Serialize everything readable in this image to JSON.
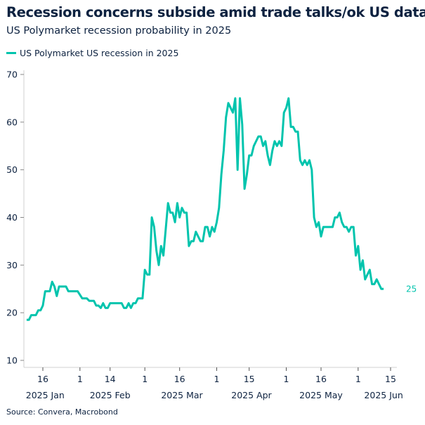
{
  "title": "Recession concerns subside amid trade talks/ok US data",
  "subtitle": "US Polymarket recession probability in 2025",
  "source": "Source: Convera, Macrobond",
  "colors": {
    "line": "#00c4ad",
    "text": "#0d2240",
    "axis": "#d0d0d0"
  },
  "chart_data": {
    "type": "line",
    "title": "Recession concerns subside amid trade talks/ok US data",
    "subtitle": "US Polymarket recession probability in 2025",
    "legend_position": "top-left",
    "grid": false,
    "ylim": [
      10,
      70
    ],
    "yticks": [
      10,
      20,
      30,
      40,
      50,
      60,
      70
    ],
    "xlim": [
      "2025-01-05",
      "2025-06-18"
    ],
    "xticks": [
      {
        "date": "2025-01-16",
        "label": "16"
      },
      {
        "date": "2025-02-01",
        "label": "1"
      },
      {
        "date": "2025-02-14",
        "label": "14"
      },
      {
        "date": "2025-03-01",
        "label": "1"
      },
      {
        "date": "2025-03-16",
        "label": "16"
      },
      {
        "date": "2025-04-01",
        "label": "1"
      },
      {
        "date": "2025-04-15",
        "label": "15"
      },
      {
        "date": "2025-05-01",
        "label": "1"
      },
      {
        "date": "2025-05-16",
        "label": "16"
      },
      {
        "date": "2025-06-01",
        "label": "1"
      },
      {
        "date": "2025-06-15",
        "label": "15"
      }
    ],
    "month_labels": [
      {
        "date": "2025-01-17",
        "label": "2025 Jan"
      },
      {
        "date": "2025-02-14",
        "label": "2025 Feb"
      },
      {
        "date": "2025-03-17",
        "label": "2025 Mar"
      },
      {
        "date": "2025-04-16",
        "label": "2025 Apr"
      },
      {
        "date": "2025-05-16",
        "label": "2025 May"
      },
      {
        "date": "2025-06-12",
        "label": "2025 Jun"
      }
    ],
    "last_value_label": "25",
    "series": [
      {
        "name": "US Polymarket US recession in 2025",
        "points": [
          [
            "2025-01-09",
            18.5
          ],
          [
            "2025-01-10",
            18.5
          ],
          [
            "2025-01-11",
            19.5
          ],
          [
            "2025-01-13",
            19.5
          ],
          [
            "2025-01-14",
            20.5
          ],
          [
            "2025-01-15",
            20.5
          ],
          [
            "2025-01-16",
            21.5
          ],
          [
            "2025-01-17",
            24.5
          ],
          [
            "2025-01-19",
            24.5
          ],
          [
            "2025-01-20",
            26.5
          ],
          [
            "2025-01-21",
            25.5
          ],
          [
            "2025-01-22",
            23.5
          ],
          [
            "2025-01-23",
            25.5
          ],
          [
            "2025-01-26",
            25.5
          ],
          [
            "2025-01-27",
            24.5
          ],
          [
            "2025-01-31",
            24.5
          ],
          [
            "2025-02-02",
            23
          ],
          [
            "2025-02-04",
            23
          ],
          [
            "2025-02-05",
            22.5
          ],
          [
            "2025-02-07",
            22.5
          ],
          [
            "2025-02-08",
            21.5
          ],
          [
            "2025-02-09",
            21.5
          ],
          [
            "2025-02-10",
            21
          ],
          [
            "2025-02-11",
            22
          ],
          [
            "2025-02-12",
            21
          ],
          [
            "2025-02-13",
            21
          ],
          [
            "2025-02-14",
            22
          ],
          [
            "2025-02-19",
            22
          ],
          [
            "2025-02-20",
            21
          ],
          [
            "2025-02-21",
            21
          ],
          [
            "2025-02-22",
            22
          ],
          [
            "2025-02-23",
            21
          ],
          [
            "2025-02-24",
            22
          ],
          [
            "2025-02-25",
            22
          ],
          [
            "2025-02-26",
            23
          ],
          [
            "2025-02-28",
            23
          ],
          [
            "2025-03-01",
            29
          ],
          [
            "2025-03-02",
            28
          ],
          [
            "2025-03-03",
            28
          ],
          [
            "2025-03-04",
            40
          ],
          [
            "2025-03-05",
            38
          ],
          [
            "2025-03-06",
            33
          ],
          [
            "2025-03-07",
            30
          ],
          [
            "2025-03-08",
            34
          ],
          [
            "2025-03-09",
            32
          ],
          [
            "2025-03-11",
            43
          ],
          [
            "2025-03-12",
            41
          ],
          [
            "2025-03-13",
            41
          ],
          [
            "2025-03-14",
            39
          ],
          [
            "2025-03-15",
            43
          ],
          [
            "2025-03-16",
            40
          ],
          [
            "2025-03-17",
            42
          ],
          [
            "2025-03-18",
            41
          ],
          [
            "2025-03-19",
            41
          ],
          [
            "2025-03-20",
            34
          ],
          [
            "2025-03-21",
            35
          ],
          [
            "2025-03-22",
            35
          ],
          [
            "2025-03-23",
            37
          ],
          [
            "2025-03-25",
            35
          ],
          [
            "2025-03-26",
            35
          ],
          [
            "2025-03-27",
            38
          ],
          [
            "2025-03-28",
            38
          ],
          [
            "2025-03-29",
            36
          ],
          [
            "2025-03-30",
            38
          ],
          [
            "2025-03-31",
            37
          ],
          [
            "2025-04-01",
            39
          ],
          [
            "2025-04-02",
            42
          ],
          [
            "2025-04-03",
            49
          ],
          [
            "2025-04-04",
            54
          ],
          [
            "2025-04-05",
            61
          ],
          [
            "2025-04-06",
            64
          ],
          [
            "2025-04-08",
            62
          ],
          [
            "2025-04-09",
            65
          ],
          [
            "2025-04-10",
            50
          ],
          [
            "2025-04-11",
            65
          ],
          [
            "2025-04-12",
            59.5
          ],
          [
            "2025-04-13",
            46
          ],
          [
            "2025-04-14",
            49
          ],
          [
            "2025-04-15",
            53
          ],
          [
            "2025-04-16",
            53
          ],
          [
            "2025-04-17",
            55
          ],
          [
            "2025-04-18",
            56
          ],
          [
            "2025-04-19",
            57
          ],
          [
            "2025-04-20",
            57
          ],
          [
            "2025-04-21",
            55
          ],
          [
            "2025-04-22",
            56
          ],
          [
            "2025-04-23",
            53
          ],
          [
            "2025-04-24",
            51
          ],
          [
            "2025-04-25",
            54
          ],
          [
            "2025-04-26",
            56
          ],
          [
            "2025-04-27",
            55
          ],
          [
            "2025-04-28",
            56
          ],
          [
            "2025-04-29",
            55
          ],
          [
            "2025-04-30",
            62
          ],
          [
            "2025-05-01",
            63
          ],
          [
            "2025-05-02",
            65
          ],
          [
            "2025-05-03",
            59
          ],
          [
            "2025-05-04",
            59
          ],
          [
            "2025-05-05",
            58
          ],
          [
            "2025-05-06",
            58
          ],
          [
            "2025-05-07",
            52
          ],
          [
            "2025-05-08",
            51
          ],
          [
            "2025-05-09",
            52
          ],
          [
            "2025-05-10",
            51
          ],
          [
            "2025-05-11",
            52
          ],
          [
            "2025-05-12",
            50
          ],
          [
            "2025-05-13",
            40
          ],
          [
            "2025-05-14",
            38
          ],
          [
            "2025-05-15",
            39
          ],
          [
            "2025-05-16",
            36
          ],
          [
            "2025-05-17",
            38
          ],
          [
            "2025-05-21",
            38
          ],
          [
            "2025-05-22",
            40
          ],
          [
            "2025-05-23",
            40
          ],
          [
            "2025-05-24",
            41
          ],
          [
            "2025-05-25",
            39
          ],
          [
            "2025-05-26",
            38
          ],
          [
            "2025-05-27",
            38
          ],
          [
            "2025-05-28",
            37
          ],
          [
            "2025-05-29",
            38
          ],
          [
            "2025-05-30",
            38
          ],
          [
            "2025-05-31",
            32
          ],
          [
            "2025-06-01",
            34
          ],
          [
            "2025-06-02",
            29
          ],
          [
            "2025-06-03",
            31
          ],
          [
            "2025-06-04",
            27
          ],
          [
            "2025-06-06",
            29
          ],
          [
            "2025-06-07",
            26
          ],
          [
            "2025-06-08",
            26
          ],
          [
            "2025-06-09",
            27
          ],
          [
            "2025-06-10",
            26
          ],
          [
            "2025-06-11",
            25
          ],
          [
            "2025-06-12",
            25
          ]
        ]
      }
    ]
  }
}
